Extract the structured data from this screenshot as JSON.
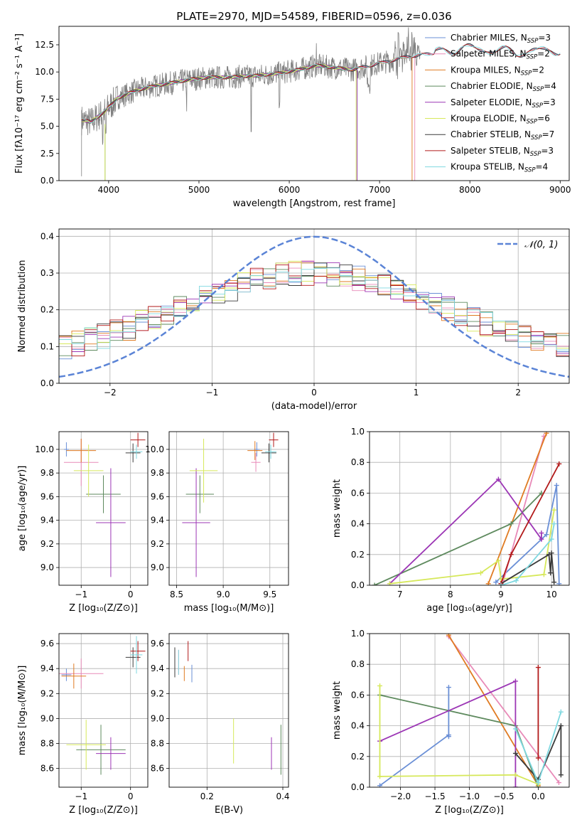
{
  "title": "PLATE=2970, MJD=54589, FIBERID=0596, z=0.036",
  "colors": {
    "c0": "#6a8fd6",
    "c1": "#e88ab8",
    "c2": "#e07b22",
    "c3": "#5e8a5e",
    "c4": "#9c36b5",
    "c5": "#d6e85a",
    "c6": "#3b3b3b",
    "c7": "#b21a1a",
    "c8": "#7fd8e0",
    "data": "#808080",
    "gauss": "#5b84d6"
  },
  "chart_data": [
    {
      "id": "spectrum",
      "type": "line",
      "xlabel": "wavelength [Angstrom, rest frame]",
      "ylabel": "Flux [fλ10⁻¹⁷ erg cm⁻² s⁻¹ A⁻¹]",
      "xlim": [
        3450,
        9100
      ],
      "ylim": [
        0,
        14.2
      ],
      "xticks": [
        4000,
        5000,
        6000,
        7000,
        8000,
        9000
      ],
      "yticks": [
        0.0,
        2.5,
        5.0,
        7.5,
        10.0,
        12.5
      ],
      "grid": false,
      "legend_position": "top-right",
      "series": [
        {
          "name": "Chabrier MILES, N",
          "sub": "SSP",
          "suffix": "=3",
          "end": 9000
        },
        {
          "name": "Salpeter MILES, N",
          "sub": "SSP",
          "suffix": "=2",
          "end": 7390
        },
        {
          "name": "Kroupa MILES, N",
          "sub": "SSP",
          "suffix": "=2",
          "end": 7360
        },
        {
          "name": "Chabrier ELODIE, N",
          "sub": "SSP",
          "suffix": "=4",
          "end": 6750
        },
        {
          "name": "Salpeter ELODIE, N",
          "sub": "SSP",
          "suffix": "=3",
          "end": 6750
        },
        {
          "name": "Kroupa ELODIE, N",
          "sub": "SSP",
          "suffix": "=6",
          "end": 6740
        },
        {
          "name": "Chabrier STELIB, N",
          "sub": "SSP",
          "suffix": "=7",
          "end": 9000
        },
        {
          "name": "Salpeter STELIB, N",
          "sub": "SSP",
          "suffix": "=3",
          "end": 9000
        },
        {
          "name": "Kroupa STELIB, N",
          "sub": "SSP",
          "suffix": "=4",
          "end": 9000
        }
      ],
      "continuum": {
        "wavelength": [
          3700,
          3800,
          3950,
          4100,
          4300,
          4500,
          4700,
          4900,
          5100,
          5300,
          5500,
          5700,
          5900,
          6100,
          6300,
          6500,
          6700,
          6900,
          7100,
          7300,
          7500,
          7700,
          7900,
          8100,
          8300,
          8500,
          8700,
          8900,
          9000
        ],
        "flux": [
          5.6,
          5.4,
          6.3,
          7.6,
          8.3,
          8.7,
          9.0,
          9.3,
          9.5,
          9.5,
          9.6,
          9.7,
          9.9,
          10.2,
          10.6,
          10.4,
          10.2,
          10.6,
          11.0,
          11.4,
          11.6,
          11.9,
          12.2,
          12.1,
          12.0,
          11.8,
          11.9,
          12.0,
          12.0
        ]
      }
    },
    {
      "id": "residuals",
      "type": "bar",
      "xlabel": "(data-model)/error",
      "ylabel": "Normed distribution",
      "xlim": [
        -2.5,
        2.5
      ],
      "ylim": [
        0,
        0.42
      ],
      "xticks": [
        -2,
        -1,
        0,
        1,
        2
      ],
      "yticks": [
        0.0,
        0.1,
        0.2,
        0.3,
        0.4
      ],
      "grid": true,
      "legend_position": "top-right",
      "legend_label": "𝒩(0, 1)",
      "bins": 40
    },
    {
      "id": "age-Z",
      "type": "scatter",
      "xlabel": "Z [log₁₀(Z/Z⊙)]",
      "ylabel": "age  [log₁₀(age/yr)]",
      "xlim": [
        -1.45,
        0.35
      ],
      "ylim": [
        8.85,
        10.15
      ],
      "xticks": [
        -1,
        0
      ],
      "yticks": [
        9.0,
        9.2,
        9.4,
        9.6,
        9.8,
        10.0
      ],
      "grid": true,
      "points": [
        {
          "x": -1.3,
          "y": 10.0,
          "xerr": 0.05,
          "yerr": 0.06
        },
        {
          "x": -1.0,
          "y": 9.89,
          "xerr": 0.35,
          "yerr": 0.2
        },
        {
          "x": -1.0,
          "y": 9.99,
          "xerr": 0.3,
          "yerr": 0.1
        },
        {
          "x": -0.55,
          "y": 9.62,
          "xerr": 0.35,
          "yerr": 0.16
        },
        {
          "x": -0.4,
          "y": 9.38,
          "xerr": 0.3,
          "yerr": 0.46
        },
        {
          "x": -0.85,
          "y": 9.82,
          "xerr": 0.3,
          "yerr": 0.22
        },
        {
          "x": 0.05,
          "y": 9.97,
          "xerr": 0.15,
          "yerr": 0.08
        },
        {
          "x": 0.15,
          "y": 10.08,
          "xerr": 0.15,
          "yerr": 0.06
        },
        {
          "x": 0.12,
          "y": 9.98,
          "xerr": 0.12,
          "yerr": 0.06
        }
      ]
    },
    {
      "id": "age-mass",
      "type": "scatter",
      "xlabel": "mass [log₁₀(M/M⊙)]",
      "ylabel": "",
      "xlim": [
        8.42,
        9.7
      ],
      "ylim": [
        8.85,
        10.15
      ],
      "xticks": [
        8.5,
        9.0,
        9.5
      ],
      "yticks": [
        9.0,
        9.2,
        9.4,
        9.6,
        9.8,
        10.0
      ],
      "grid": true,
      "points": [
        {
          "x": 9.36,
          "y": 10.0,
          "xerr": 0.03,
          "yerr": 0.06
        },
        {
          "x": 9.35,
          "y": 9.89,
          "xerr": 0.05,
          "yerr": 0.08
        },
        {
          "x": 9.34,
          "y": 9.99,
          "xerr": 0.08,
          "yerr": 0.08
        },
        {
          "x": 8.75,
          "y": 9.62,
          "xerr": 0.15,
          "yerr": 0.16
        },
        {
          "x": 8.71,
          "y": 9.38,
          "xerr": 0.15,
          "yerr": 0.46
        },
        {
          "x": 8.79,
          "y": 9.82,
          "xerr": 0.15,
          "yerr": 0.27
        },
        {
          "x": 9.49,
          "y": 9.97,
          "xerr": 0.08,
          "yerr": 0.08
        },
        {
          "x": 9.54,
          "y": 10.08,
          "xerr": 0.05,
          "yerr": 0.06
        },
        {
          "x": 9.51,
          "y": 9.98,
          "xerr": 0.06,
          "yerr": 0.06
        }
      ]
    },
    {
      "id": "weight-age",
      "type": "line",
      "xlabel": "age  [log₁₀(age/yr)]",
      "ylabel": "mass weight",
      "xlim": [
        6.4,
        10.35
      ],
      "ylim": [
        0,
        1.0
      ],
      "xticks": [
        7,
        8,
        9,
        10
      ],
      "yticks": [
        0.0,
        0.2,
        0.4,
        0.6,
        0.8,
        1.0
      ],
      "grid": true,
      "series": [
        {
          "x": [
            10.15,
            10.1,
            9.9,
            8.9
          ],
          "y": [
            0.01,
            0.65,
            0.33,
            0.02
          ]
        },
        {
          "x": [
            9.05,
            9.85
          ],
          "y": [
            0.03,
            0.97
          ]
        },
        {
          "x": [
            8.75,
            9.9
          ],
          "y": [
            0.01,
            0.99
          ]
        },
        {
          "x": [
            6.5,
            9.2,
            9.8
          ],
          "y": [
            0.0,
            0.4,
            0.6
          ]
        },
        {
          "x": [
            6.8,
            8.95,
            9.8,
            9.8
          ],
          "y": [
            0.01,
            0.69,
            0.3,
            0.34
          ]
        },
        {
          "x": [
            6.8,
            8.6,
            8.95,
            9.0,
            9.85,
            10.05
          ],
          "y": [
            0.01,
            0.08,
            0.16,
            0.04,
            0.07,
            0.49
          ]
        },
        {
          "x": [
            9.0,
            9.95,
            9.98,
            10.0,
            10.05
          ],
          "y": [
            0.01,
            0.2,
            0.08,
            0.21,
            0.02
          ]
        },
        {
          "x": [
            9.0,
            9.2,
            10.15
          ],
          "y": [
            0.01,
            0.2,
            0.79
          ]
        },
        {
          "x": [
            9.0,
            9.3,
            10.0,
            10.05
          ],
          "y": [
            0.0,
            0.03,
            0.3,
            0.4
          ]
        }
      ]
    },
    {
      "id": "mass-Z",
      "type": "scatter",
      "xlabel": "Z [log₁₀(Z/Z⊙)]",
      "ylabel": "mass [log₁₀(M/M⊙)]",
      "xlim": [
        -1.45,
        0.35
      ],
      "ylim": [
        8.45,
        9.68
      ],
      "xticks": [
        -1,
        0
      ],
      "yticks": [
        8.6,
        8.8,
        9.0,
        9.2,
        9.4,
        9.6
      ],
      "grid": true,
      "points": [
        {
          "x": -1.3,
          "y": 9.35,
          "xerr": 0.1,
          "yerr": 0.05
        },
        {
          "x": -1.0,
          "y": 9.36,
          "xerr": 0.45,
          "yerr": 0.12
        },
        {
          "x": -1.15,
          "y": 9.34,
          "xerr": 0.25,
          "yerr": 0.1
        },
        {
          "x": -0.6,
          "y": 8.75,
          "xerr": 0.5,
          "yerr": 0.2
        },
        {
          "x": -0.4,
          "y": 8.72,
          "xerr": 0.3,
          "yerr": 0.13
        },
        {
          "x": -0.9,
          "y": 8.79,
          "xerr": 0.4,
          "yerr": 0.2
        },
        {
          "x": 0.05,
          "y": 9.49,
          "xerr": 0.15,
          "yerr": 0.08
        },
        {
          "x": 0.15,
          "y": 9.54,
          "xerr": 0.15,
          "yerr": 0.08
        },
        {
          "x": 0.12,
          "y": 9.51,
          "xerr": 0.12,
          "yerr": 0.15
        }
      ]
    },
    {
      "id": "mass-EBV",
      "type": "scatter",
      "xlabel": "E(B-V)",
      "ylabel": "",
      "xlim": [
        0.1,
        0.415
      ],
      "ylim": [
        8.45,
        9.68
      ],
      "xticks": [
        0.2,
        0.4
      ],
      "yticks": [
        8.6,
        8.8,
        9.0,
        9.2,
        9.4,
        9.6
      ],
      "grid": true,
      "points": [
        {
          "x": 0.16,
          "y": 9.36,
          "xerr": 0,
          "yerr": 0.07
        },
        {
          "x": 0.125,
          "y": 9.45,
          "xerr": 0,
          "yerr": 0.1
        },
        {
          "x": 0.14,
          "y": 9.36,
          "xerr": 0,
          "yerr": 0.06
        },
        {
          "x": 0.395,
          "y": 8.75,
          "xerr": 0,
          "yerr": 0.2
        },
        {
          "x": 0.37,
          "y": 8.72,
          "xerr": 0,
          "yerr": 0.13
        },
        {
          "x": 0.27,
          "y": 8.82,
          "xerr": 0,
          "yerr": 0.18
        },
        {
          "x": 0.115,
          "y": 9.45,
          "xerr": 0,
          "yerr": 0.12
        },
        {
          "x": 0.15,
          "y": 9.54,
          "xerr": 0,
          "yerr": 0.08
        },
        {
          "x": 0.125,
          "y": 9.45,
          "xerr": 0,
          "yerr": 0.1
        }
      ]
    },
    {
      "id": "weight-Z",
      "type": "line",
      "xlabel": "Z [log₁₀(Z/Z⊙)]",
      "ylabel": "mass weight",
      "xlim": [
        -2.45,
        0.45
      ],
      "ylim": [
        0,
        1.0
      ],
      "xticks": [
        -2.0,
        -1.5,
        -1.0,
        -0.5,
        0.0
      ],
      "yticks": [
        0.0,
        0.2,
        0.4,
        0.6,
        0.8,
        1.0
      ],
      "grid": true,
      "series": [
        {
          "x": [
            -2.3,
            -1.3,
            -1.3,
            -1.3
          ],
          "y": [
            0.01,
            0.34,
            0.65,
            0.33
          ]
        },
        {
          "x": [
            -1.3,
            0.3
          ],
          "y": [
            0.98,
            0.03
          ]
        },
        {
          "x": [
            -1.3,
            -0.0
          ],
          "y": [
            0.99,
            0.01
          ]
        },
        {
          "x": [
            -2.3,
            -0.33,
            0.0
          ],
          "y": [
            0.6,
            0.4,
            0.0
          ]
        },
        {
          "x": [
            -2.3,
            -0.33,
            -0.33
          ],
          "y": [
            0.3,
            0.69,
            0.0
          ]
        },
        {
          "x": [
            -2.3,
            -2.3,
            -0.33,
            0.0
          ],
          "y": [
            0.66,
            0.07,
            0.08,
            0.02
          ]
        },
        {
          "x": [
            -0.33,
            0.0,
            0.33,
            0.33
          ],
          "y": [
            0.22,
            0.05,
            0.4,
            0.08
          ]
        },
        {
          "x": [
            0.0,
            0.0
          ],
          "y": [
            0.78,
            0.19
          ]
        },
        {
          "x": [
            -0.33,
            0.0,
            0.33
          ],
          "y": [
            0.38,
            0.03,
            0.49
          ]
        }
      ]
    }
  ]
}
